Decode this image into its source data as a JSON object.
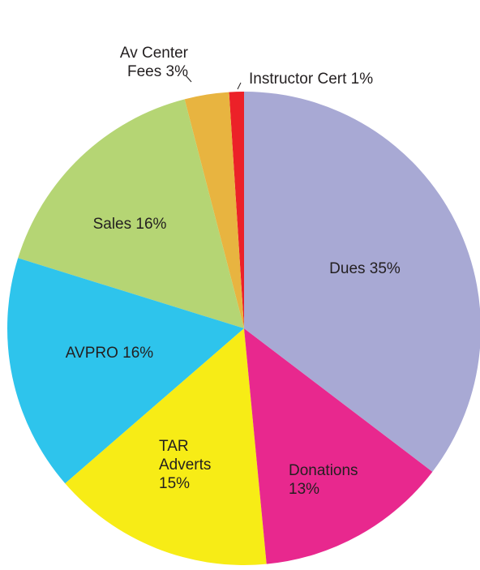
{
  "chart_data": {
    "type": "pie",
    "categories": [
      "Dues",
      "Donations",
      "TAR Adverts",
      "AVPRO",
      "Sales",
      "Av Center Fees",
      "Instructor Cert"
    ],
    "values": [
      35,
      13,
      15,
      16,
      16,
      3,
      1
    ],
    "value_labels": [
      "35%",
      "13%",
      "15%",
      "16%",
      "16%",
      "3%",
      "1%"
    ],
    "colors": [
      "#a8a9d4",
      "#e8288e",
      "#f7ec16",
      "#2ec4ec",
      "#b5d574",
      "#e8b440",
      "#ec2128"
    ],
    "start_angle": "top",
    "direction": "clockwise"
  }
}
